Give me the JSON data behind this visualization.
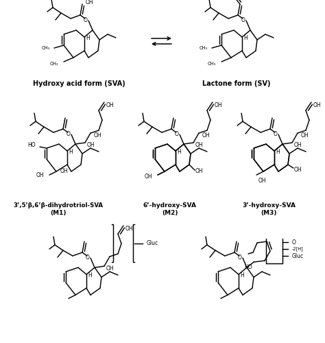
{
  "figsize": [
    4.74,
    5.0
  ],
  "dpi": 100,
  "bg": "#ffffff",
  "labels": {
    "sva": "Hydroxy acid form (SVA)",
    "sv": "Lactone form (SV)",
    "m1a": "3’,5’β,6’β-dihydrotriol-SVA",
    "m1b": "(M1)",
    "m2a": "6’-hydroxy-SVA",
    "m2b": "(M2)",
    "m3a": "3’-hydroxy-SVA",
    "m3b": "(M3)"
  }
}
